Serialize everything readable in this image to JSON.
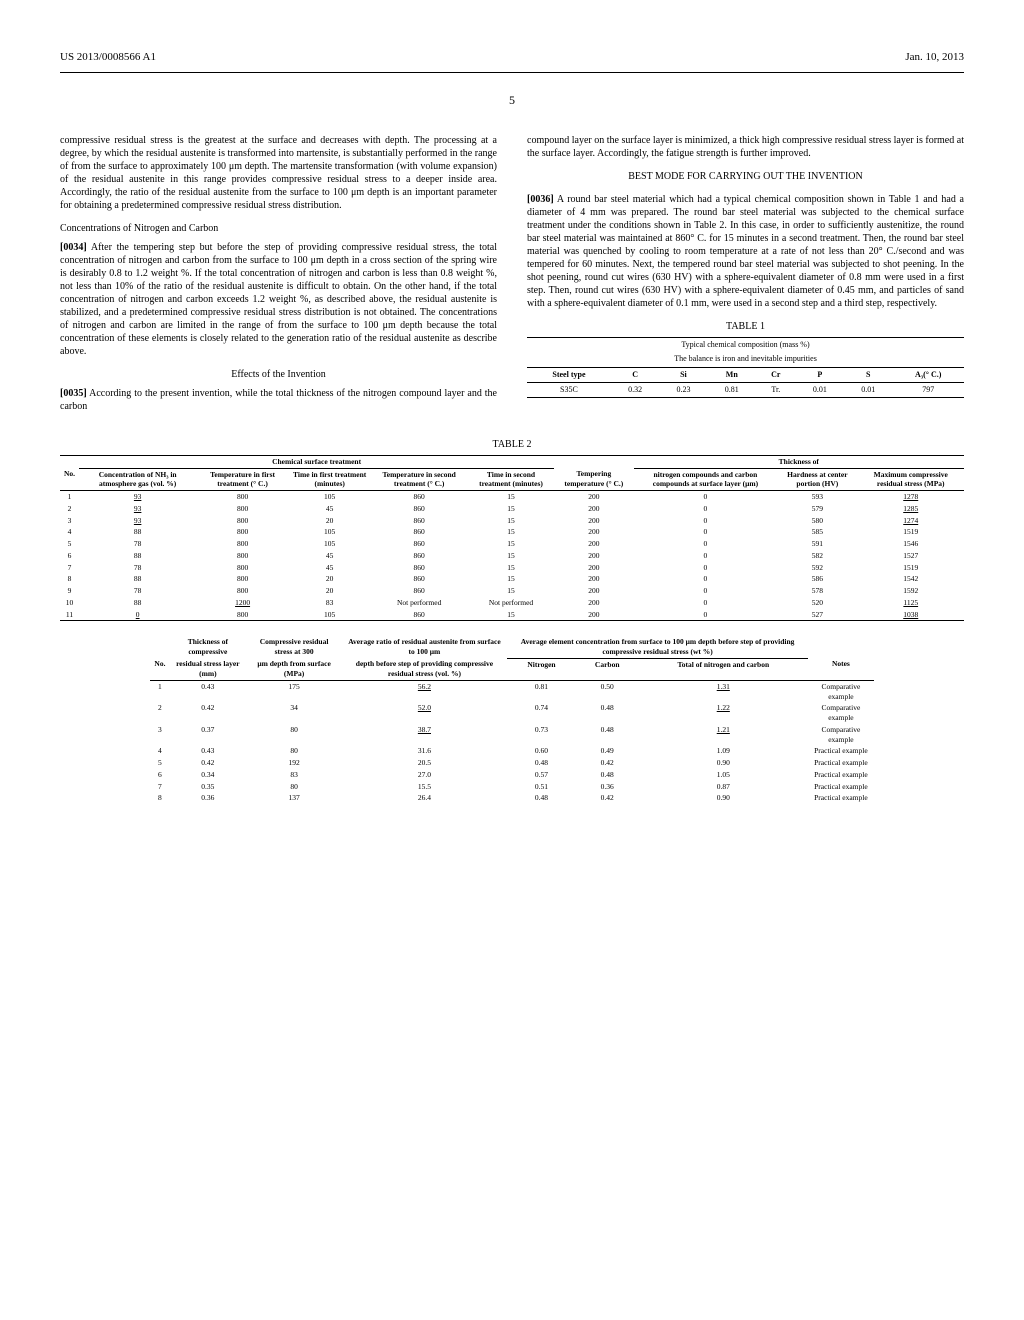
{
  "header": {
    "left": "US 2013/0008566 A1",
    "right": "Jan. 10, 2013"
  },
  "page_number": "5",
  "left_column": {
    "p1": "compressive residual stress is the greatest at the surface and decreases with depth. The processing at a degree, by which the residual austenite is transformed into martensite, is substantially performed in the range of from the surface to approximately 100 μm depth. The martensite transformation (with volume expansion) of the residual austenite in this range provides compressive residual stress to a deeper inside area. Accordingly, the ratio of the residual austenite from the surface to 100 μm depth is an important parameter for obtaining a predetermined compressive residual stress distribution.",
    "h1": "Concentrations of Nitrogen and Carbon",
    "p2_num": "[0034]",
    "p2": "After the tempering step but before the step of providing compressive residual stress, the total concentration of nitrogen and carbon from the surface to 100 μm depth in a cross section of the spring wire is desirably 0.8 to 1.2 weight %. If the total concentration of nitrogen and carbon is less than 0.8 weight %, not less than 10% of the ratio of the residual austenite is difficult to obtain. On the other hand, if the total concentration of nitrogen and carbon exceeds 1.2 weight %, as described above, the residual austenite is stabilized, and a predetermined compressive residual stress distribution is not obtained. The concentrations of nitrogen and carbon are limited in the range of from the surface to 100 μm depth because the total concentration of these elements is closely related to the generation ratio of the residual austenite as describe above.",
    "h2": "Effects of the Invention",
    "p3_num": "[0035]",
    "p3": "According to the present invention, while the total thickness of the nitrogen compound layer and the carbon"
  },
  "right_column": {
    "p1": "compound layer on the surface layer is minimized, a thick high compressive residual stress layer is formed at the surface layer. Accordingly, the fatigue strength is further improved.",
    "h1": "BEST MODE FOR CARRYING OUT THE INVENTION",
    "p2_num": "[0036]",
    "p2": "A round bar steel material which had a typical chemical composition shown in Table 1 and had a diameter of 4 mm was prepared. The round bar steel material was subjected to the chemical surface treatment under the conditions shown in Table 2. In this case, in order to sufficiently austenitize, the round bar steel material was maintained at 860° C. for 15 minutes in a second treatment. Then, the round bar steel material was quenched by cooling to room temperature at a rate of not less than 20° C./second and was tempered for 60 minutes. Next, the tempered round bar steel material was subjected to shot peening. In the shot peening, round cut wires (630 HV) with a sphere-equivalent diameter of 0.8 mm were used in a first step. Then, round cut wires (630 HV) with a sphere-equivalent diameter of 0.45 mm, and particles of sand with a sphere-equivalent diameter of 0.1 mm, were used in a second step and a third step, respectively."
  },
  "table1": {
    "title": "TABLE 1",
    "caption1": "Typical chemical composition (mass %)",
    "caption2": "The balance is iron and inevitable impurities",
    "headers": [
      "Steel type",
      "C",
      "Si",
      "Mn",
      "Cr",
      "P",
      "S",
      "A₃(° C.)"
    ],
    "row": [
      "S35C",
      "0.32",
      "0.23",
      "0.81",
      "Tr.",
      "0.01",
      "0.01",
      "797"
    ]
  },
  "table2": {
    "title": "TABLE 2",
    "group_headers": [
      "Chemical surface treatment",
      "Thickness of"
    ],
    "headers": [
      "No.",
      "Concentration of NH₃ in atmosphere gas (vol. %)",
      "Temperature in first treatment (° C.)",
      "Time in first treatment (minutes)",
      "Temperature in second treatment (° C.)",
      "Time in second treatment (minutes)",
      "Tempering temperature (° C.)",
      "nitrogen compounds and carbon compounds at surface layer (μm)",
      "Hardness at center portion (HV)",
      "Maximum compressive residual stress (MPa)"
    ],
    "rows": [
      [
        "1",
        "93",
        "800",
        "105",
        "860",
        "15",
        "200",
        "0",
        "593",
        "1278"
      ],
      [
        "2",
        "93",
        "800",
        "45",
        "860",
        "15",
        "200",
        "0",
        "579",
        "1285"
      ],
      [
        "3",
        "93",
        "800",
        "20",
        "860",
        "15",
        "200",
        "0",
        "580",
        "1274"
      ],
      [
        "4",
        "88",
        "800",
        "105",
        "860",
        "15",
        "200",
        "0",
        "585",
        "1519"
      ],
      [
        "5",
        "78",
        "800",
        "105",
        "860",
        "15",
        "200",
        "0",
        "591",
        "1546"
      ],
      [
        "6",
        "88",
        "800",
        "45",
        "860",
        "15",
        "200",
        "0",
        "582",
        "1527"
      ],
      [
        "7",
        "78",
        "800",
        "45",
        "860",
        "15",
        "200",
        "0",
        "592",
        "1519"
      ],
      [
        "8",
        "88",
        "800",
        "20",
        "860",
        "15",
        "200",
        "0",
        "586",
        "1542"
      ],
      [
        "9",
        "78",
        "800",
        "20",
        "860",
        "15",
        "200",
        "0",
        "578",
        "1592"
      ],
      [
        "10",
        "88",
        "1200",
        "83",
        "Not performed",
        "Not performed",
        "200",
        "0",
        "520",
        "1125"
      ],
      [
        "11",
        "0",
        "800",
        "105",
        "860",
        "15",
        "200",
        "0",
        "527",
        "1038"
      ]
    ],
    "underlined_cells": {
      "0": [
        1,
        9
      ],
      "1": [
        1,
        9
      ],
      "2": [
        1,
        9
      ],
      "9": [
        2,
        9
      ],
      "10": [
        1,
        9
      ]
    }
  },
  "table2b": {
    "group_header": "Average element concentration from surface to 100 μm depth before step of providing compressive residual stress (wt %)",
    "headers": [
      "No.",
      "Thickness of compressive residual stress layer (mm)",
      "Compressive residual stress at 300 μm depth from surface (MPa)",
      "Average ratio of residual austenite from surface to 100 μm depth before step of providing compressive residual stress (vol. %)",
      "Nitrogen",
      "Carbon",
      "Total of nitrogen and carbon",
      "Notes"
    ],
    "rows": [
      [
        "1",
        "0.43",
        "175",
        "56.2",
        "0.81",
        "0.50",
        "1.31",
        "Comparative example"
      ],
      [
        "2",
        "0.42",
        "34",
        "52.0",
        "0.74",
        "0.48",
        "1.22",
        "Comparative example"
      ],
      [
        "3",
        "0.37",
        "80",
        "38.7",
        "0.73",
        "0.48",
        "1.21",
        "Comparative example"
      ],
      [
        "4",
        "0.43",
        "80",
        "31.6",
        "0.60",
        "0.49",
        "1.09",
        "Practical example"
      ],
      [
        "5",
        "0.42",
        "192",
        "20.5",
        "0.48",
        "0.42",
        "0.90",
        "Practical example"
      ],
      [
        "6",
        "0.34",
        "83",
        "27.0",
        "0.57",
        "0.48",
        "1.05",
        "Practical example"
      ],
      [
        "7",
        "0.35",
        "80",
        "15.5",
        "0.51",
        "0.36",
        "0.87",
        "Practical example"
      ],
      [
        "8",
        "0.36",
        "137",
        "26.4",
        "0.48",
        "0.42",
        "0.90",
        "Practical example"
      ]
    ],
    "underlined_cells": {
      "0": [
        3,
        6
      ],
      "1": [
        3,
        6
      ],
      "2": [
        3,
        6
      ]
    }
  }
}
